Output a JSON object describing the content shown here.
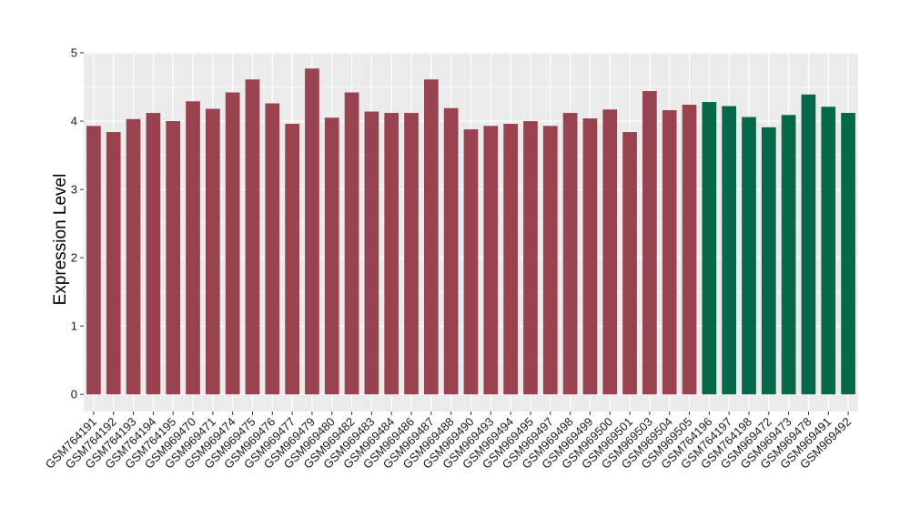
{
  "chart_data": {
    "type": "bar",
    "title": "",
    "xlabel": "",
    "ylabel": "Expression Level",
    "ylim": [
      -0.25,
      5.0
    ],
    "yticks": [
      "0",
      "1",
      "2",
      "3",
      "4",
      "5"
    ],
    "grid": true,
    "legend": "none",
    "colors": {
      "group1": "#9a4350",
      "group2": "#05684a",
      "panel": "#ebebeb",
      "grid": "#ffffff"
    },
    "categories": [
      "GSM764191",
      "GSM764192",
      "GSM764193",
      "GSM764194",
      "GSM764195",
      "GSM969470",
      "GSM969471",
      "GSM969474",
      "GSM969475",
      "GSM969476",
      "GSM969477",
      "GSM969479",
      "GSM969480",
      "GSM969482",
      "GSM969483",
      "GSM969484",
      "GSM969486",
      "GSM969487",
      "GSM969488",
      "GSM969490",
      "GSM969493",
      "GSM969494",
      "GSM969495",
      "GSM969497",
      "GSM969498",
      "GSM969499",
      "GSM969500",
      "GSM969501",
      "GSM969503",
      "GSM969504",
      "GSM969505",
      "GSM764196",
      "GSM764197",
      "GSM764198",
      "GSM969472",
      "GSM969473",
      "GSM969478",
      "GSM969491",
      "GSM969492"
    ],
    "values": [
      3.93,
      3.84,
      4.03,
      4.12,
      4.0,
      4.29,
      4.18,
      4.42,
      4.61,
      4.26,
      3.96,
      4.77,
      4.05,
      4.42,
      4.14,
      4.12,
      4.12,
      4.61,
      4.19,
      3.88,
      3.93,
      3.96,
      4.0,
      3.93,
      4.12,
      4.04,
      4.17,
      3.84,
      4.44,
      4.16,
      4.24,
      4.28,
      4.22,
      4.06,
      3.91,
      4.09,
      4.39,
      4.21,
      4.12
    ],
    "groups": [
      1,
      1,
      1,
      1,
      1,
      1,
      1,
      1,
      1,
      1,
      1,
      1,
      1,
      1,
      1,
      1,
      1,
      1,
      1,
      1,
      1,
      1,
      1,
      1,
      1,
      1,
      1,
      1,
      1,
      1,
      1,
      2,
      2,
      2,
      2,
      2,
      2,
      2,
      2
    ]
  }
}
